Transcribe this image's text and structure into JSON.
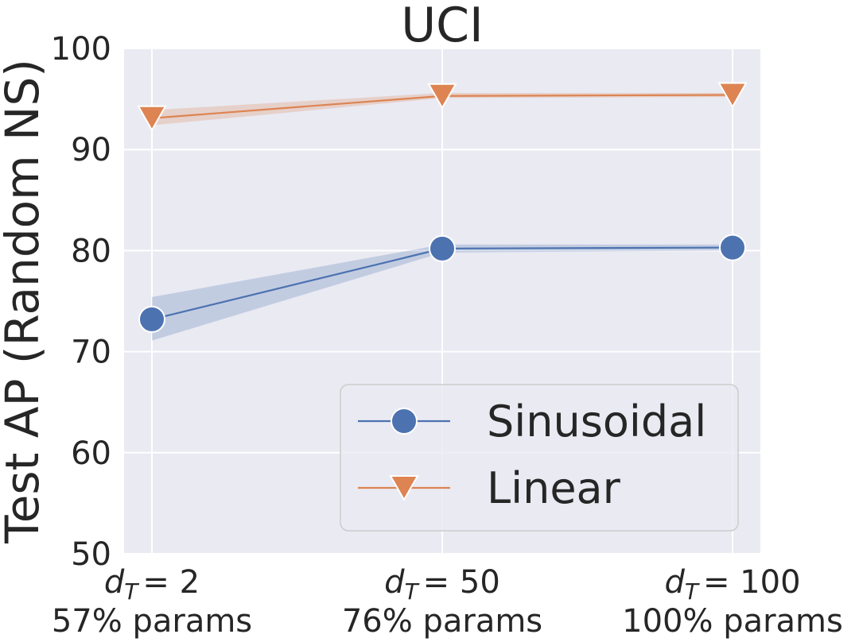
{
  "chart_data": {
    "type": "line",
    "title": "UCI",
    "ylabel": "Test AP (Random NS)",
    "xlabel": "",
    "ylim": [
      50,
      100
    ],
    "yticks": [
      50,
      60,
      70,
      80,
      90,
      100
    ],
    "grid": true,
    "legend_position": "lower-right",
    "categories": [
      {
        "var": "d",
        "sub": "T",
        "eq": "= 2",
        "params": "57% params"
      },
      {
        "var": "d",
        "sub": "T",
        "eq": "= 50",
        "params": "76% params"
      },
      {
        "var": "d",
        "sub": "T",
        "eq": "= 100",
        "params": "100% params"
      }
    ],
    "series": [
      {
        "name": "Sinusoidal",
        "marker": "circle",
        "color": "#4c72b0",
        "values": [
          73.2,
          80.2,
          80.3
        ],
        "ci_low": [
          71.1,
          79.8,
          80.0
        ],
        "ci_high": [
          75.4,
          80.6,
          80.6
        ]
      },
      {
        "name": "Linear",
        "marker": "triangle-down",
        "color": "#dd8452",
        "values": [
          93.1,
          95.3,
          95.4
        ],
        "ci_low": [
          92.4,
          95.1,
          95.2
        ],
        "ci_high": [
          93.9,
          95.6,
          95.6
        ]
      }
    ]
  }
}
